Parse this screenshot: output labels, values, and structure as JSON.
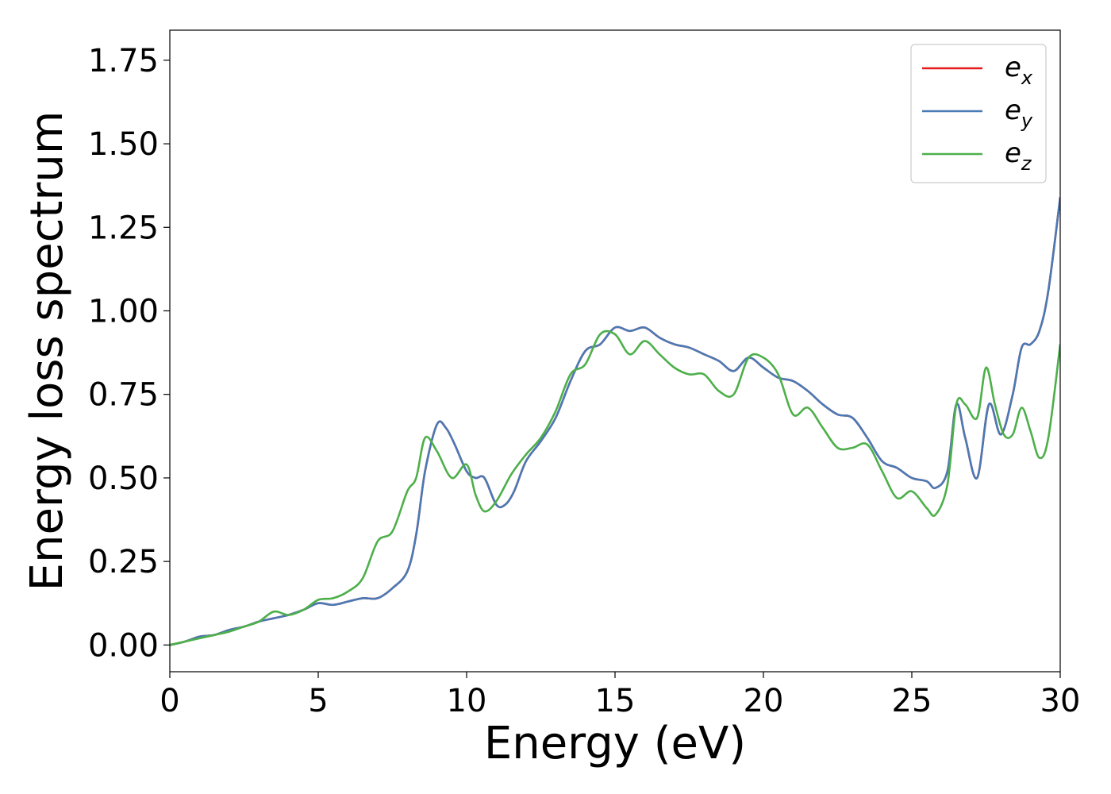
{
  "chart_data": {
    "type": "line",
    "title": "",
    "xlabel": "Energy (eV)",
    "ylabel": "Energy loss spectrum",
    "xlim": [
      0,
      30
    ],
    "ylim": [
      -0.08,
      1.84
    ],
    "xticks": [
      0,
      5,
      10,
      15,
      20,
      25,
      30
    ],
    "xtick_labels": [
      "0",
      "5",
      "10",
      "15",
      "20",
      "25",
      "30"
    ],
    "yticks": [
      0.0,
      0.25,
      0.5,
      0.75,
      1.0,
      1.25,
      1.5,
      1.75
    ],
    "ytick_labels": [
      "0.00",
      "0.25",
      "0.50",
      "0.75",
      "1.00",
      "1.25",
      "1.50",
      "1.75"
    ],
    "grid": false,
    "legend_position": "top-right",
    "series": [
      {
        "name": "e_x",
        "legend_base": "e",
        "legend_sub": "x",
        "color": "#e41a1c",
        "x": [
          0,
          0.5,
          1,
          1.5,
          2,
          2.5,
          3,
          3.5,
          4,
          4.5,
          5,
          5.5,
          6,
          6.5,
          7,
          7.5,
          8,
          8.3,
          8.6,
          9,
          9.3,
          9.6,
          10,
          10.3,
          10.6,
          11,
          11.3,
          11.6,
          12,
          12.5,
          13,
          13.5,
          14,
          14.5,
          15,
          15.5,
          16,
          16.5,
          17,
          17.5,
          18,
          18.5,
          19,
          19.5,
          20,
          20.5,
          21,
          21.5,
          22,
          22.5,
          23,
          23.5,
          24,
          24.5,
          25,
          25.5,
          25.8,
          26.2,
          26.5,
          26.8,
          27.2,
          27.6,
          28,
          28.4,
          28.7,
          29,
          29.3,
          29.6,
          30
        ],
        "y": [
          0.0,
          0.01,
          0.025,
          0.03,
          0.045,
          0.055,
          0.07,
          0.08,
          0.09,
          0.105,
          0.125,
          0.12,
          0.13,
          0.14,
          0.14,
          0.17,
          0.22,
          0.33,
          0.52,
          0.66,
          0.65,
          0.6,
          0.52,
          0.5,
          0.5,
          0.42,
          0.42,
          0.46,
          0.55,
          0.61,
          0.68,
          0.79,
          0.88,
          0.9,
          0.95,
          0.94,
          0.95,
          0.92,
          0.9,
          0.89,
          0.87,
          0.85,
          0.82,
          0.86,
          0.83,
          0.8,
          0.79,
          0.76,
          0.72,
          0.69,
          0.68,
          0.62,
          0.55,
          0.53,
          0.5,
          0.49,
          0.47,
          0.52,
          0.72,
          0.62,
          0.5,
          0.72,
          0.63,
          0.75,
          0.89,
          0.9,
          0.94,
          1.06,
          1.34
        ]
      },
      {
        "name": "e_y",
        "legend_base": "e",
        "legend_sub": "y",
        "color": "#4a7ab5",
        "x": [
          0,
          0.5,
          1,
          1.5,
          2,
          2.5,
          3,
          3.5,
          4,
          4.5,
          5,
          5.5,
          6,
          6.5,
          7,
          7.5,
          8,
          8.3,
          8.6,
          9,
          9.3,
          9.6,
          10,
          10.3,
          10.6,
          11,
          11.3,
          11.6,
          12,
          12.5,
          13,
          13.5,
          14,
          14.5,
          15,
          15.5,
          16,
          16.5,
          17,
          17.5,
          18,
          18.5,
          19,
          19.5,
          20,
          20.5,
          21,
          21.5,
          22,
          22.5,
          23,
          23.5,
          24,
          24.5,
          25,
          25.5,
          25.8,
          26.2,
          26.5,
          26.8,
          27.2,
          27.6,
          28,
          28.4,
          28.7,
          29,
          29.3,
          29.6,
          30
        ],
        "y": [
          0.0,
          0.01,
          0.025,
          0.03,
          0.045,
          0.055,
          0.07,
          0.08,
          0.09,
          0.105,
          0.125,
          0.12,
          0.13,
          0.14,
          0.14,
          0.17,
          0.22,
          0.33,
          0.52,
          0.66,
          0.65,
          0.6,
          0.52,
          0.5,
          0.5,
          0.42,
          0.42,
          0.46,
          0.55,
          0.61,
          0.68,
          0.79,
          0.88,
          0.9,
          0.95,
          0.94,
          0.95,
          0.92,
          0.9,
          0.89,
          0.87,
          0.85,
          0.82,
          0.86,
          0.83,
          0.8,
          0.79,
          0.76,
          0.72,
          0.69,
          0.68,
          0.62,
          0.55,
          0.53,
          0.5,
          0.49,
          0.47,
          0.52,
          0.72,
          0.62,
          0.5,
          0.72,
          0.63,
          0.75,
          0.89,
          0.9,
          0.94,
          1.06,
          1.34
        ]
      },
      {
        "name": "e_z",
        "legend_base": "e",
        "legend_sub": "z",
        "color": "#4daf4a",
        "x": [
          0,
          0.5,
          1,
          1.5,
          2,
          2.5,
          3,
          3.5,
          4,
          4.5,
          5,
          5.5,
          6,
          6.5,
          7,
          7.5,
          8,
          8.3,
          8.6,
          9,
          9.5,
          10,
          10.3,
          10.6,
          11,
          11.5,
          12,
          12.5,
          13,
          13.5,
          14,
          14.5,
          15,
          15.5,
          16,
          16.5,
          17,
          17.5,
          18,
          18.5,
          19,
          19.5,
          20,
          20.5,
          21,
          21.5,
          22,
          22.5,
          23,
          23.5,
          24,
          24.5,
          25,
          25.5,
          25.8,
          26.2,
          26.5,
          26.8,
          27.2,
          27.5,
          27.8,
          28.1,
          28.4,
          28.7,
          29,
          29.3,
          29.6,
          30
        ],
        "y": [
          0.0,
          0.01,
          0.02,
          0.03,
          0.04,
          0.055,
          0.07,
          0.1,
          0.09,
          0.105,
          0.135,
          0.14,
          0.16,
          0.2,
          0.31,
          0.34,
          0.46,
          0.5,
          0.62,
          0.58,
          0.5,
          0.54,
          0.45,
          0.4,
          0.43,
          0.51,
          0.57,
          0.62,
          0.7,
          0.81,
          0.84,
          0.93,
          0.93,
          0.87,
          0.91,
          0.87,
          0.83,
          0.81,
          0.81,
          0.76,
          0.75,
          0.86,
          0.86,
          0.81,
          0.69,
          0.71,
          0.65,
          0.59,
          0.59,
          0.6,
          0.52,
          0.44,
          0.46,
          0.41,
          0.39,
          0.48,
          0.72,
          0.72,
          0.68,
          0.83,
          0.72,
          0.63,
          0.63,
          0.71,
          0.64,
          0.56,
          0.62,
          0.9
        ]
      }
    ]
  }
}
